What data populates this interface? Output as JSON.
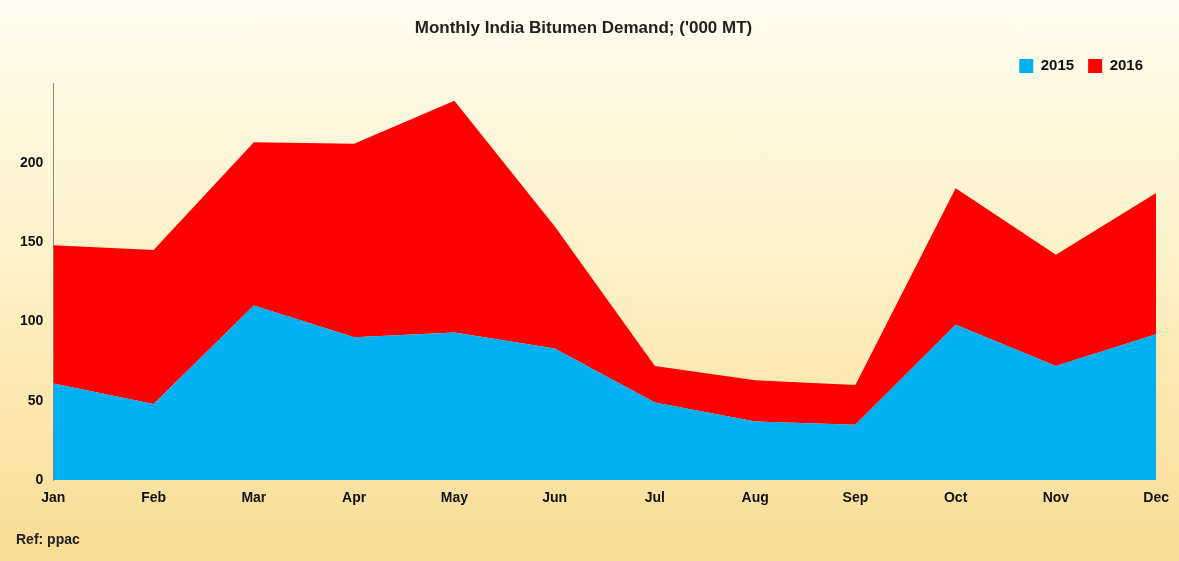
{
  "chart_data": {
    "type": "area",
    "title": "Monthly India Bitumen Demand; ('000 MT)",
    "annotation": "Ref: ppac",
    "categories": [
      "Jan",
      "Feb",
      "Mar",
      "Apr",
      "May",
      "Jun",
      "Jul",
      "Aug",
      "Sep",
      "Oct",
      "Nov",
      "Dec"
    ],
    "series": [
      {
        "name": "2015",
        "color": "#00b0f0",
        "values": [
          61,
          48,
          110,
          90,
          93,
          83,
          49,
          37,
          35,
          98,
          72,
          92
        ]
      },
      {
        "name": "2016",
        "color": "#ff0000",
        "values": [
          87,
          97,
          103,
          122,
          146,
          77,
          23,
          26,
          25,
          86,
          70,
          89
        ]
      }
    ],
    "stacked": true,
    "ylim": [
      0,
      250
    ],
    "yticks": [
      0,
      50,
      100,
      150,
      200
    ],
    "grid": false,
    "legend": "top-right"
  }
}
